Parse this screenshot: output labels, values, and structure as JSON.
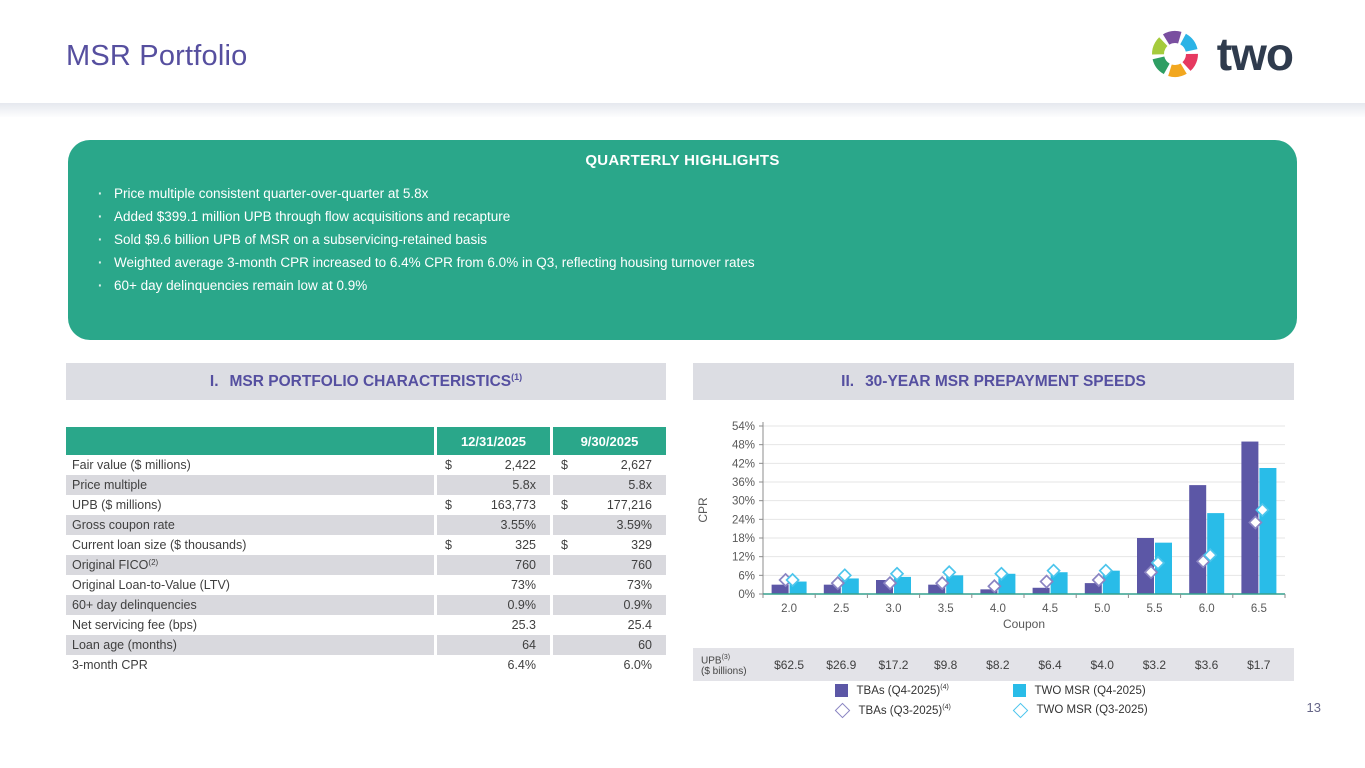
{
  "slide": {
    "title": "MSR Portfolio",
    "logo_text": "two",
    "page_number": "13"
  },
  "colors": {
    "teal": "#2aa78a",
    "heading_purple": "#554fa0",
    "bar_purple": "#5c57a6",
    "bar_cyan": "#29bce8",
    "panel_header_bg": "#dcdde3",
    "row_shade": "#d9d9de"
  },
  "highlights": {
    "title": "QUARTERLY HIGHLIGHTS",
    "bullets": [
      "Price multiple consistent quarter-over-quarter at 5.8x",
      "Added $399.1 million UPB through flow acquisitions and recapture",
      "Sold $9.6 billion UPB of MSR on a subservicing-retained basis",
      "Weighted average 3-month CPR increased to 6.4% CPR from 6.0% in Q3, reflecting housing turnover rates",
      "60+ day delinquencies remain low at 0.9%"
    ]
  },
  "characteristics": {
    "numeral": "I.",
    "title": "MSR PORTFOLIO CHARACTERISTICS",
    "title_sup": "(1)",
    "columns": [
      "12/31/2025",
      "9/30/2025"
    ],
    "rows": [
      {
        "label": "Fair value ($ millions)",
        "label_sup": "",
        "d1": "$",
        "v1": "2,422",
        "d2": "$",
        "v2": "2,627",
        "shaded": false
      },
      {
        "label": "Price multiple",
        "label_sup": "",
        "d1": "",
        "v1": "5.8x",
        "d2": "",
        "v2": "5.8x",
        "shaded": true
      },
      {
        "label": "UPB ($ millions)",
        "label_sup": "",
        "d1": "$",
        "v1": "163,773",
        "d2": "$",
        "v2": "177,216",
        "shaded": false
      },
      {
        "label": "Gross coupon rate",
        "label_sup": "",
        "d1": "",
        "v1": "3.55%",
        "d2": "",
        "v2": "3.59%",
        "shaded": true
      },
      {
        "label": "Current loan size ($ thousands)",
        "label_sup": "",
        "d1": "$",
        "v1": "325",
        "d2": "$",
        "v2": "329",
        "shaded": false
      },
      {
        "label": "Original FICO",
        "label_sup": "(2)",
        "d1": "",
        "v1": "760",
        "d2": "",
        "v2": "760",
        "shaded": true
      },
      {
        "label": "Original Loan-to-Value (LTV)",
        "label_sup": "",
        "d1": "",
        "v1": "73%",
        "d2": "",
        "v2": "73%",
        "shaded": false
      },
      {
        "label": "60+ day delinquencies",
        "label_sup": "",
        "d1": "",
        "v1": "0.9%",
        "d2": "",
        "v2": "0.9%",
        "shaded": true
      },
      {
        "label": "Net servicing fee (bps)",
        "label_sup": "",
        "d1": "",
        "v1": "25.3",
        "d2": "",
        "v2": "25.4",
        "shaded": false
      },
      {
        "label": "Loan age (months)",
        "label_sup": "",
        "d1": "",
        "v1": "64",
        "d2": "",
        "v2": "60",
        "shaded": true
      },
      {
        "label": "3-month CPR",
        "label_sup": "",
        "d1": "",
        "v1": "6.4%",
        "d2": "",
        "v2": "6.0%",
        "shaded": false
      }
    ]
  },
  "prepayment": {
    "numeral": "II.",
    "title": "30-YEAR MSR PREPAYMENT SPEEDS",
    "upb_label": "UPB",
    "upb_label_sup": "(3)",
    "upb_label2": "($ billions)",
    "upb_values": [
      "$62.5",
      "$26.9",
      "$17.2",
      "$9.8",
      "$8.2",
      "$6.4",
      "$4.0",
      "$3.2",
      "$3.6",
      "$1.7"
    ],
    "legend": [
      {
        "name": "TBAs (Q4-2025)",
        "sup": "(4)",
        "marker": "square",
        "color": "#5c57a6"
      },
      {
        "name": "TWO MSR (Q4-2025)",
        "sup": "",
        "marker": "square",
        "color": "#29bce8"
      },
      {
        "name": "TBAs (Q3-2025)",
        "sup": "(4)",
        "marker": "diamond",
        "color": "#8a84c2"
      },
      {
        "name": "TWO MSR (Q3-2025)",
        "sup": "",
        "marker": "diamond",
        "color": "#4cc5ec"
      }
    ]
  },
  "chart_data": {
    "type": "bar",
    "title": "II. 30-YEAR MSR PREPAYMENT SPEEDS",
    "xlabel": "Coupon",
    "ylabel": "CPR",
    "ylim": [
      0,
      54
    ],
    "ytick_step": 6,
    "grid": true,
    "legend_position": "bottom",
    "categories": [
      "2.0",
      "2.5",
      "3.0",
      "3.5",
      "4.0",
      "4.5",
      "5.0",
      "5.5",
      "6.0",
      "6.5"
    ],
    "series": [
      {
        "name": "TBAs (Q4-2025)",
        "style": "bar",
        "color": "#5c57a6",
        "values": [
          3,
          3,
          4.5,
          3,
          1.5,
          2,
          3.5,
          18,
          35,
          49
        ]
      },
      {
        "name": "TWO MSR (Q4-2025)",
        "style": "bar",
        "color": "#29bce8",
        "values": [
          4,
          5,
          5.5,
          6,
          6.5,
          7,
          7.5,
          16.5,
          26,
          40.5
        ]
      },
      {
        "name": "TBAs (Q3-2025)",
        "style": "diamond",
        "color": "#8a84c2",
        "values": [
          4.5,
          3.5,
          3.5,
          3.5,
          2.5,
          4,
          4.5,
          7,
          10.5,
          23
        ]
      },
      {
        "name": "TWO MSR (Q3-2025)",
        "style": "diamond",
        "color": "#4cc5ec",
        "values": [
          4.5,
          6,
          6.5,
          7,
          6.5,
          7.5,
          7.5,
          10,
          12.5,
          27
        ]
      }
    ]
  }
}
